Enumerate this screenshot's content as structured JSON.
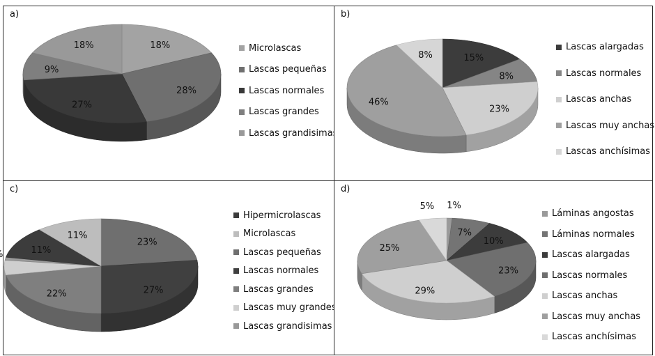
{
  "chart_data": [
    {
      "type": "pie",
      "panel_label": "a)",
      "title": "",
      "categories": [
        "Microlascas",
        "Lascas pequeñas",
        "Lascas normales",
        "Lascas grandes",
        "Lascas grandisimas"
      ],
      "values": [
        18,
        28,
        27,
        9,
        18
      ],
      "data_labels": [
        "18%",
        "28%",
        "27%",
        "9%",
        "18%"
      ],
      "colors": [
        "#a3a3a3",
        "#6f6f6f",
        "#393939",
        "#7f7f7f",
        "#999999"
      ],
      "start_angle_deg": 0,
      "legend_position": "right"
    },
    {
      "type": "pie",
      "panel_label": "b)",
      "title": "",
      "categories": [
        "Lascas alargadas",
        "Lascas normales",
        "Lascas anchas",
        "Lascas muy anchas",
        "Lascas anchísimas"
      ],
      "values": [
        15,
        8,
        23,
        46,
        8
      ],
      "data_labels": [
        "15%",
        "8%",
        "23%",
        "46%",
        "8%"
      ],
      "colors": [
        "#3c3c3c",
        "#858585",
        "#cfcfcf",
        "#9f9f9f",
        "#d6d6d6"
      ],
      "start_angle_deg": 0,
      "legend_position": "right"
    },
    {
      "type": "pie",
      "panel_label": "c)",
      "title": "",
      "categories": [
        "Hipermicrolascas",
        "Microlascas",
        "Lascas pequeñas",
        "Lascas normales",
        "Lascas grandes",
        "Lascas muy grandes",
        "Lascas grandisimas"
      ],
      "values": [
        11,
        11,
        23,
        27,
        22,
        5,
        1
      ],
      "display_order": [
        3,
        4,
        5,
        6,
        7,
        1,
        2
      ],
      "data_labels": [
        "11%",
        "11%",
        "23%",
        "27%",
        "22%",
        "5%",
        "1%"
      ],
      "colors": [
        "#3c3c3c",
        "#bdbdbd",
        "#6f6f6f",
        "#404040",
        "#7f7f7f",
        "#cfcfcf",
        "#999999"
      ],
      "start_angle_deg": 0,
      "legend_position": "right"
    },
    {
      "type": "pie",
      "panel_label": "d)",
      "title": "",
      "categories": [
        "Láminas angostas",
        "Láminas normales",
        "Lascas alargadas",
        "Lascas normales",
        "Lascas anchas",
        "Lascas muy anchas",
        "Lascas anchísimas"
      ],
      "values": [
        1,
        7,
        10,
        23,
        29,
        25,
        5
      ],
      "data_labels": [
        "1%",
        "7%",
        "10%",
        "23%",
        "29%",
        "25%",
        "5%"
      ],
      "colors": [
        "#9a9a9a",
        "#747474",
        "#3c3c3c",
        "#6f6f6f",
        "#cfcfcf",
        "#9f9f9f",
        "#d9d9d9"
      ],
      "start_angle_deg": 0,
      "legend_position": "right"
    }
  ]
}
